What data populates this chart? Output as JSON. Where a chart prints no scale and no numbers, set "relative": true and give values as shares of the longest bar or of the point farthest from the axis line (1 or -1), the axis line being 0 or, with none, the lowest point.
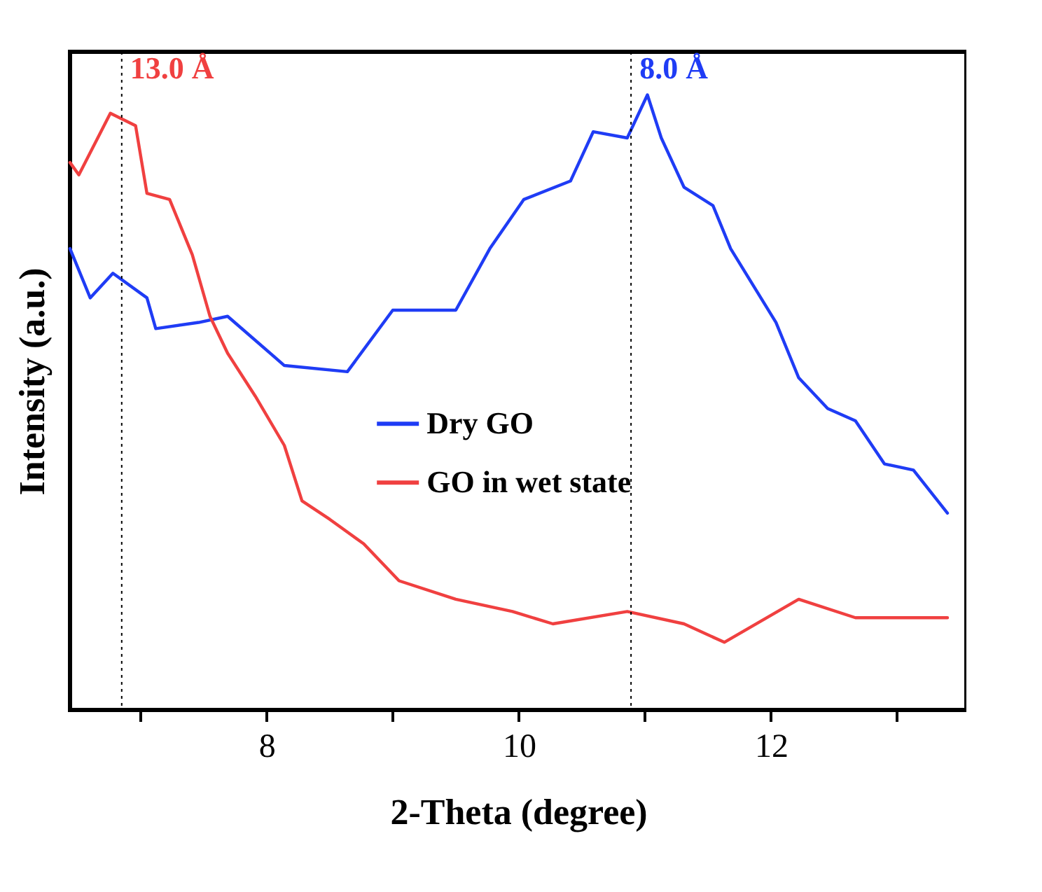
{
  "chart_data": {
    "type": "line",
    "relative": true,
    "xlabel": "2-Theta (degree)",
    "ylabel": "Intensity (a.u.)",
    "xlim": [
      6.44,
      13.55
    ],
    "xticks": [
      {
        "value": 7,
        "label": null
      },
      8,
      {
        "value": 9,
        "label": null
      },
      10,
      {
        "value": 11,
        "label": null
      },
      12,
      {
        "value": 13,
        "label": null
      }
    ],
    "series": [
      {
        "name": "Dry GO",
        "color": "#1f3cf5",
        "x": [
          6.44,
          6.6,
          6.78,
          7.05,
          7.12,
          7.46,
          7.69,
          8.14,
          8.64,
          9.0,
          9.5,
          9.77,
          10.04,
          10.41,
          10.59,
          10.86,
          11.02,
          11.13,
          11.31,
          11.54,
          11.68,
          11.86,
          12.04,
          12.22,
          12.45,
          12.67,
          12.9,
          13.13,
          13.4
        ],
        "values": [
          0.75,
          0.67,
          0.71,
          0.67,
          0.62,
          0.63,
          0.64,
          0.56,
          0.55,
          0.65,
          0.65,
          0.75,
          0.83,
          0.86,
          0.94,
          0.93,
          1.0,
          0.93,
          0.85,
          0.82,
          0.75,
          0.69,
          0.63,
          0.54,
          0.49,
          0.47,
          0.4,
          0.39,
          0.32
        ]
      },
      {
        "name": "GO in wet state",
        "color": "#f04040",
        "x": [
          6.44,
          6.51,
          6.76,
          6.96,
          7.05,
          7.23,
          7.41,
          7.55,
          7.69,
          7.91,
          8.14,
          8.28,
          8.5,
          8.77,
          9.05,
          9.5,
          9.95,
          10.27,
          10.86,
          11.31,
          11.63,
          12.22,
          12.67,
          13.13,
          13.4
        ],
        "values": [
          0.89,
          0.87,
          0.97,
          0.95,
          0.84,
          0.83,
          0.74,
          0.64,
          0.58,
          0.51,
          0.43,
          0.34,
          0.31,
          0.27,
          0.21,
          0.18,
          0.16,
          0.14,
          0.16,
          0.14,
          0.11,
          0.18,
          0.15,
          0.15,
          0.15
        ]
      }
    ],
    "ref_lines": [
      {
        "axis": "x",
        "value": 6.85,
        "label": "13.0 Å",
        "color": "#000000",
        "line_style": "dotted"
      },
      {
        "axis": "x",
        "value": 10.89,
        "label": "8.0 Å",
        "color": "#000000",
        "line_style": "dotted"
      }
    ],
    "legend": "center",
    "grid": false,
    "line_style": "solid",
    "marker": "none"
  }
}
